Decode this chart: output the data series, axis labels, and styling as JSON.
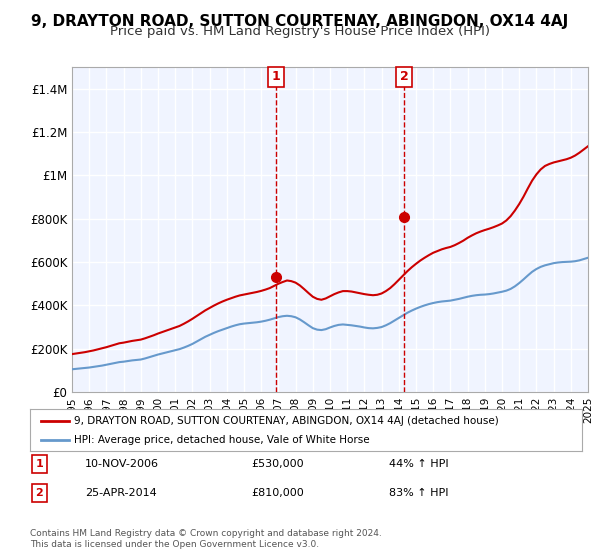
{
  "title": "9, DRAYTON ROAD, SUTTON COURTENAY, ABINGDON, OX14 4AJ",
  "subtitle": "Price paid vs. HM Land Registry's House Price Index (HPI)",
  "title_fontsize": 11,
  "subtitle_fontsize": 9.5,
  "background_color": "#ffffff",
  "plot_bg_color": "#f0f4ff",
  "grid_color": "#ffffff",
  "ylim": [
    0,
    1500000
  ],
  "yticks": [
    0,
    200000,
    400000,
    600000,
    800000,
    1000000,
    1200000,
    1400000
  ],
  "ytick_labels": [
    "£0",
    "£200K",
    "£400K",
    "£600K",
    "£800K",
    "£1M",
    "£1.2M",
    "£1.4M"
  ],
  "xlabel": "",
  "sale1_x": 2006.86,
  "sale2_x": 2014.32,
  "sale1_label": "1",
  "sale2_label": "2",
  "sale1_price": 530000,
  "sale2_price": 810000,
  "legend_line1": "9, DRAYTON ROAD, SUTTON COURTENAY, ABINGDON, OX14 4AJ (detached house)",
  "legend_line2": "HPI: Average price, detached house, Vale of White Horse",
  "legend_color1": "#cc0000",
  "legend_color2": "#6699cc",
  "annotation1": "10-NOV-2006",
  "annotation1_price": "£530,000",
  "annotation1_hpi": "44% ↑ HPI",
  "annotation2": "25-APR-2014",
  "annotation2_price": "£810,000",
  "annotation2_hpi": "83% ↑ HPI",
  "footer": "Contains HM Land Registry data © Crown copyright and database right 2024.\nThis data is licensed under the Open Government Licence v3.0.",
  "hpi_years": [
    1995,
    1995.25,
    1995.5,
    1995.75,
    1996,
    1996.25,
    1996.5,
    1996.75,
    1997,
    1997.25,
    1997.5,
    1997.75,
    1998,
    1998.25,
    1998.5,
    1998.75,
    1999,
    1999.25,
    1999.5,
    1999.75,
    2000,
    2000.25,
    2000.5,
    2000.75,
    2001,
    2001.25,
    2001.5,
    2001.75,
    2002,
    2002.25,
    2002.5,
    2002.75,
    2003,
    2003.25,
    2003.5,
    2003.75,
    2004,
    2004.25,
    2004.5,
    2004.75,
    2005,
    2005.25,
    2005.5,
    2005.75,
    2006,
    2006.25,
    2006.5,
    2006.75,
    2007,
    2007.25,
    2007.5,
    2007.75,
    2008,
    2008.25,
    2008.5,
    2008.75,
    2009,
    2009.25,
    2009.5,
    2009.75,
    2010,
    2010.25,
    2010.5,
    2010.75,
    2011,
    2011.25,
    2011.5,
    2011.75,
    2012,
    2012.25,
    2012.5,
    2012.75,
    2013,
    2013.25,
    2013.5,
    2013.75,
    2014,
    2014.25,
    2014.5,
    2014.75,
    2015,
    2015.25,
    2015.5,
    2015.75,
    2016,
    2016.25,
    2016.5,
    2016.75,
    2017,
    2017.25,
    2017.5,
    2017.75,
    2018,
    2018.25,
    2018.5,
    2018.75,
    2019,
    2019.25,
    2019.5,
    2019.75,
    2020,
    2020.25,
    2020.5,
    2020.75,
    2021,
    2021.25,
    2021.5,
    2021.75,
    2022,
    2022.25,
    2022.5,
    2022.75,
    2023,
    2023.25,
    2023.5,
    2023.75,
    2024,
    2024.25,
    2024.5,
    2024.75,
    2025
  ],
  "hpi_values": [
    105000,
    107000,
    109000,
    111000,
    113000,
    116000,
    119000,
    122000,
    126000,
    130000,
    134000,
    138000,
    140000,
    143000,
    146000,
    148000,
    150000,
    155000,
    161000,
    167000,
    173000,
    178000,
    183000,
    188000,
    193000,
    198000,
    205000,
    213000,
    222000,
    233000,
    244000,
    255000,
    264000,
    273000,
    281000,
    288000,
    295000,
    302000,
    308000,
    313000,
    316000,
    318000,
    320000,
    322000,
    325000,
    329000,
    334000,
    340000,
    346000,
    350000,
    352000,
    350000,
    345000,
    335000,
    322000,
    308000,
    295000,
    288000,
    286000,
    290000,
    298000,
    305000,
    310000,
    312000,
    310000,
    308000,
    305000,
    302000,
    298000,
    295000,
    294000,
    296000,
    300000,
    308000,
    318000,
    330000,
    342000,
    354000,
    366000,
    376000,
    385000,
    393000,
    400000,
    406000,
    411000,
    415000,
    418000,
    420000,
    422000,
    426000,
    430000,
    435000,
    440000,
    444000,
    447000,
    449000,
    450000,
    452000,
    455000,
    459000,
    463000,
    468000,
    476000,
    488000,
    503000,
    520000,
    538000,
    555000,
    568000,
    578000,
    585000,
    590000,
    595000,
    598000,
    600000,
    601000,
    602000,
    604000,
    608000,
    614000,
    620000
  ],
  "prop_years": [
    1995,
    1995.25,
    1995.5,
    1995.75,
    1996,
    1996.25,
    1996.5,
    1996.75,
    1997,
    1997.25,
    1997.5,
    1997.75,
    1998,
    1998.25,
    1998.5,
    1998.75,
    1999,
    1999.25,
    1999.5,
    1999.75,
    2000,
    2000.25,
    2000.5,
    2000.75,
    2001,
    2001.25,
    2001.5,
    2001.75,
    2002,
    2002.25,
    2002.5,
    2002.75,
    2003,
    2003.25,
    2003.5,
    2003.75,
    2004,
    2004.25,
    2004.5,
    2004.75,
    2005,
    2005.25,
    2005.5,
    2005.75,
    2006,
    2006.25,
    2006.5,
    2006.75,
    2007,
    2007.25,
    2007.5,
    2007.75,
    2008,
    2008.25,
    2008.5,
    2008.75,
    2009,
    2009.25,
    2009.5,
    2009.75,
    2010,
    2010.25,
    2010.5,
    2010.75,
    2011,
    2011.25,
    2011.5,
    2011.75,
    2012,
    2012.25,
    2012.5,
    2012.75,
    2013,
    2013.25,
    2013.5,
    2013.75,
    2014,
    2014.25,
    2014.5,
    2014.75,
    2015,
    2015.25,
    2015.5,
    2015.75,
    2016,
    2016.25,
    2016.5,
    2016.75,
    2017,
    2017.25,
    2017.5,
    2017.75,
    2018,
    2018.25,
    2018.5,
    2018.75,
    2019,
    2019.25,
    2019.5,
    2019.75,
    2020,
    2020.25,
    2020.5,
    2020.75,
    2021,
    2021.25,
    2021.5,
    2021.75,
    2022,
    2022.25,
    2022.5,
    2022.75,
    2023,
    2023.25,
    2023.5,
    2023.75,
    2024,
    2024.25,
    2024.5,
    2024.75,
    2025
  ],
  "prop_values": [
    175000,
    178000,
    181000,
    184000,
    188000,
    192000,
    197000,
    202000,
    207000,
    213000,
    219000,
    225000,
    228000,
    232000,
    236000,
    239000,
    242000,
    248000,
    255000,
    262000,
    270000,
    277000,
    284000,
    291000,
    298000,
    305000,
    315000,
    326000,
    338000,
    351000,
    364000,
    377000,
    388000,
    399000,
    409000,
    418000,
    426000,
    433000,
    440000,
    446000,
    450000,
    454000,
    458000,
    462000,
    467000,
    473000,
    480000,
    490000,
    500000,
    508000,
    515000,
    512000,
    505000,
    492000,
    475000,
    457000,
    440000,
    430000,
    426000,
    432000,
    442000,
    452000,
    460000,
    466000,
    466000,
    464000,
    460000,
    456000,
    452000,
    449000,
    447000,
    449000,
    455000,
    466000,
    480000,
    498000,
    518000,
    538000,
    558000,
    576000,
    592000,
    607000,
    620000,
    632000,
    643000,
    651000,
    659000,
    665000,
    670000,
    678000,
    688000,
    699000,
    712000,
    723000,
    733000,
    741000,
    748000,
    754000,
    761000,
    769000,
    778000,
    792000,
    812000,
    838000,
    868000,
    902000,
    940000,
    976000,
    1005000,
    1028000,
    1044000,
    1053000,
    1060000,
    1065000,
    1070000,
    1075000,
    1082000,
    1092000,
    1105000,
    1120000,
    1135000
  ]
}
